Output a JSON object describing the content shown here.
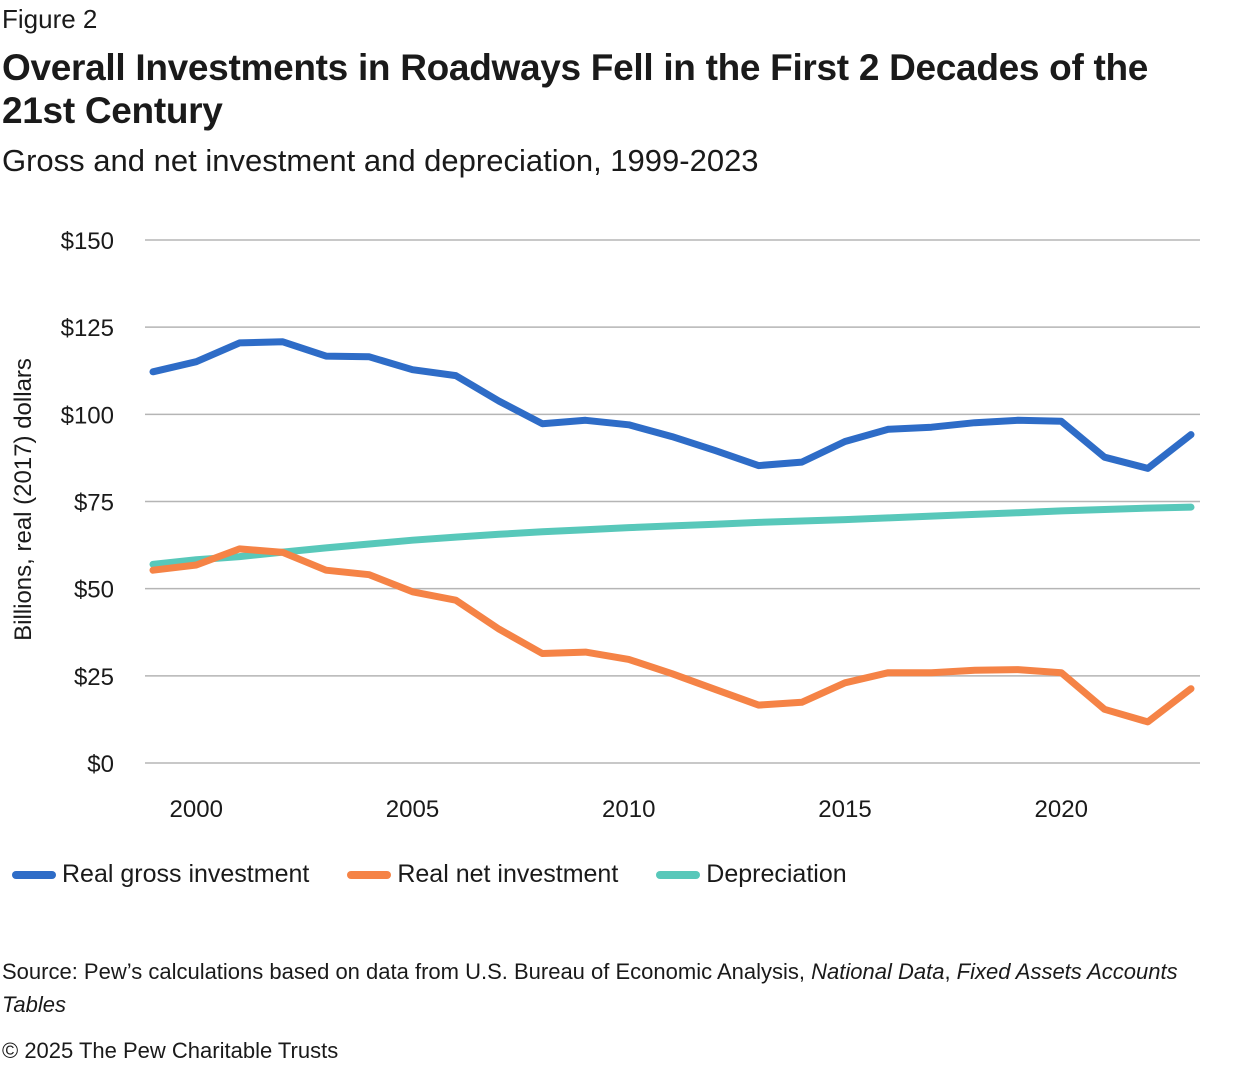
{
  "figure_label": "Figure 2",
  "title": "Overall Investments in Roadways Fell in the First 2 Decades of the 21st Century",
  "subtitle": "Gross and net investment and depreciation, 1999-2023",
  "source": {
    "prefix": "Source: Pew’s calculations based on data from U.S. Bureau of Economic Analysis, ",
    "italic1": "National Data",
    "sep": ", ",
    "italic2": "Fixed Assets Accounts Tables"
  },
  "copyright": "© 2025 The Pew Charitable Trusts",
  "chart_data": {
    "type": "line",
    "ylabel": "Billions, real (2017) dollars",
    "xlabel": "",
    "ylim": [
      0,
      150
    ],
    "xlim": [
      1999,
      2023
    ],
    "y_ticks": [
      0,
      25,
      50,
      75,
      100,
      125,
      150
    ],
    "y_tick_labels": [
      "$0",
      "$25",
      "$50",
      "$75",
      "$100",
      "$125",
      "$150"
    ],
    "x_ticks": [
      2000,
      2005,
      2010,
      2015,
      2020
    ],
    "x_tick_labels": [
      "2000",
      "2005",
      "2010",
      "2015",
      "2020"
    ],
    "grid": "horizontal",
    "legend_position": "bottom-left",
    "x": [
      1999,
      2000,
      2001,
      2002,
      2003,
      2004,
      2005,
      2006,
      2007,
      2008,
      2009,
      2010,
      2011,
      2012,
      2013,
      2014,
      2015,
      2016,
      2017,
      2018,
      2019,
      2020,
      2021,
      2022,
      2023
    ],
    "series": [
      {
        "name": "Real gross investment",
        "color": "#2e6cc7",
        "values": [
          112.2,
          115.1,
          120.5,
          120.8,
          116.7,
          116.5,
          112.8,
          111.1,
          103.8,
          97.3,
          98.3,
          97.0,
          93.6,
          89.6,
          85.3,
          86.3,
          92.2,
          95.7,
          96.3,
          97.6,
          98.3,
          98.0,
          87.7,
          84.5,
          94.2
        ]
      },
      {
        "name": "Real net investment",
        "color": "#f58346",
        "values": [
          55.3,
          56.8,
          61.4,
          60.4,
          55.3,
          54.0,
          49.1,
          46.7,
          38.4,
          31.4,
          31.8,
          29.7,
          25.6,
          21.1,
          16.6,
          17.4,
          23.0,
          25.9,
          25.9,
          26.6,
          26.8,
          25.9,
          15.4,
          11.8,
          21.3
        ]
      },
      {
        "name": "Depreciation",
        "color": "#58c8ba",
        "values": [
          57.0,
          58.3,
          59.2,
          60.5,
          61.7,
          62.8,
          63.9,
          64.8,
          65.6,
          66.3,
          66.9,
          67.5,
          68.0,
          68.5,
          69.0,
          69.4,
          69.8,
          70.3,
          70.8,
          71.3,
          71.8,
          72.3,
          72.7,
          73.1,
          73.4
        ]
      }
    ]
  }
}
